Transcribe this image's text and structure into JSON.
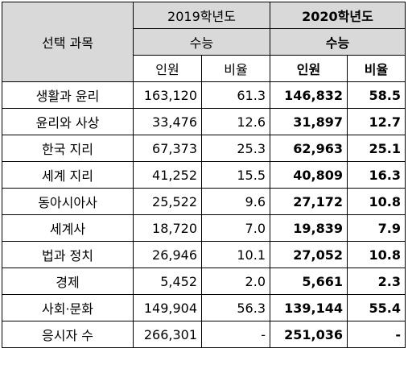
{
  "header": {
    "subject_label": "선택 과목",
    "year_2019": "2019학년도",
    "year_2020": "2020학년도",
    "exam_2019": "수능",
    "exam_2020": "수능",
    "count_2019": "인원",
    "ratio_2019": "비율",
    "count_2020": "인원",
    "ratio_2020": "비율"
  },
  "rows": [
    {
      "subject": "생활과 윤리",
      "c2019": "163,120",
      "r2019": "61.3",
      "c2020": "146,832",
      "r2020": "58.5"
    },
    {
      "subject": "윤리와 사상",
      "c2019": "33,476",
      "r2019": "12.6",
      "c2020": "31,897",
      "r2020": "12.7"
    },
    {
      "subject": "한국 지리",
      "c2019": "67,373",
      "r2019": "25.3",
      "c2020": "62,963",
      "r2020": "25.1"
    },
    {
      "subject": "세계 지리",
      "c2019": "41,252",
      "r2019": "15.5",
      "c2020": "40,809",
      "r2020": "16.3"
    },
    {
      "subject": "동아시아사",
      "c2019": "25,522",
      "r2019": "9.6",
      "c2020": "27,172",
      "r2020": "10.8"
    },
    {
      "subject": "세계사",
      "c2019": "18,720",
      "r2019": "7.0",
      "c2020": "19,839",
      "r2020": "7.9"
    },
    {
      "subject": "법과 정치",
      "c2019": "26,946",
      "r2019": "10.1",
      "c2020": "27,052",
      "r2020": "10.8"
    },
    {
      "subject": "경제",
      "c2019": "5,452",
      "r2019": "2.0",
      "c2020": "5,661",
      "r2020": "2.3"
    },
    {
      "subject": "사회·문화",
      "c2019": "149,904",
      "r2019": "56.3",
      "c2020": "139,144",
      "r2020": "55.4"
    },
    {
      "subject": "응시자 수",
      "c2019": "266,301",
      "r2019": "-",
      "c2020": "251,036",
      "r2020": "-"
    }
  ]
}
